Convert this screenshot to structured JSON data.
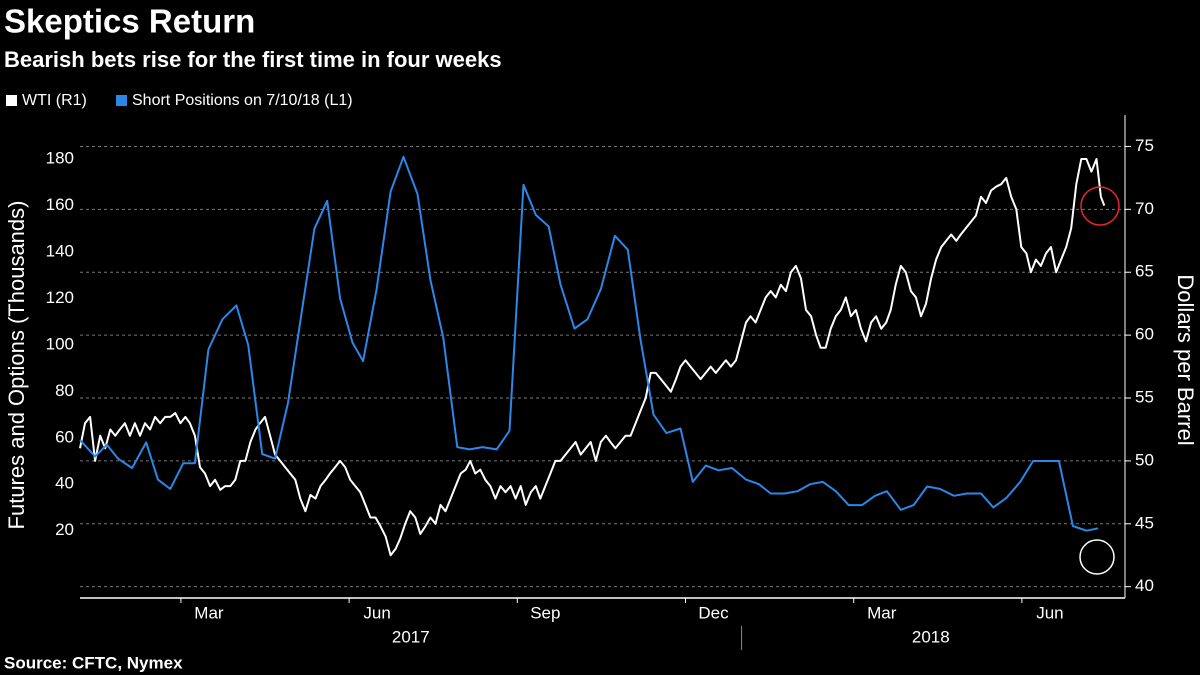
{
  "chart_data": {
    "type": "line",
    "title": "Skeptics Return",
    "subtitle": "Bearish bets rise for the first time in four weeks",
    "source": "Source: CFTC, Nymex",
    "ylabel": "Futures and Options (Thousands)",
    "y2label": "Dollars per Barrel",
    "xlim": [
      0.2,
      18.75
    ],
    "xticks": [
      {
        "value": 2,
        "label": "Mar"
      },
      {
        "value": 5,
        "label": "Jun"
      },
      {
        "value": 8,
        "label": "Sep"
      },
      {
        "value": 11,
        "label": "Dec"
      },
      {
        "value": 14,
        "label": "Mar"
      },
      {
        "value": 17,
        "label": "Jun"
      }
    ],
    "year_labels": [
      "2017",
      "2018"
    ],
    "year_divider": 12,
    "ylim": [
      -9,
      199
    ],
    "yticks": [
      20,
      40,
      60,
      80,
      100,
      120,
      140,
      160,
      180
    ],
    "y2lim": [
      39.1,
      77.5
    ],
    "y2ticks": [
      40,
      45,
      50,
      55,
      60,
      65,
      70,
      75
    ],
    "grid": "y2",
    "legend": "top-left",
    "series": [
      {
        "name": "WTI (R1)",
        "color": "#ffffff",
        "axis": "y2",
        "x": [
          0.2,
          0.29,
          0.38,
          0.47,
          0.56,
          0.65,
          0.74,
          0.83,
          0.91,
          1.0,
          1.09,
          1.18,
          1.27,
          1.36,
          1.45,
          1.54,
          1.63,
          1.72,
          1.81,
          1.9,
          1.99,
          2.08,
          2.16,
          2.25,
          2.34,
          2.43,
          2.52,
          2.61,
          2.7,
          2.79,
          2.88,
          2.97,
          3.06,
          3.15,
          3.24,
          3.33,
          3.41,
          3.5,
          3.59,
          3.68,
          3.77,
          3.86,
          3.95,
          4.04,
          4.13,
          4.22,
          4.31,
          4.4,
          4.49,
          4.58,
          4.66,
          4.75,
          4.84,
          4.93,
          5.02,
          5.11,
          5.2,
          5.29,
          5.38,
          5.47,
          5.56,
          5.65,
          5.74,
          5.83,
          5.91,
          6.0,
          6.09,
          6.18,
          6.27,
          6.36,
          6.45,
          6.54,
          6.63,
          6.72,
          6.81,
          6.9,
          6.99,
          7.08,
          7.16,
          7.25,
          7.34,
          7.43,
          7.52,
          7.61,
          7.7,
          7.79,
          7.88,
          7.97,
          8.06,
          8.15,
          8.24,
          8.33,
          8.41,
          8.5,
          8.59,
          8.68,
          8.77,
          8.86,
          8.95,
          9.04,
          9.13,
          9.22,
          9.31,
          9.4,
          9.49,
          9.58,
          9.66,
          9.75,
          9.84,
          9.93,
          10.02,
          10.11,
          10.2,
          10.29,
          10.38,
          10.47,
          10.56,
          10.65,
          10.74,
          10.83,
          10.91,
          11.0,
          11.09,
          11.18,
          11.27,
          11.36,
          11.45,
          11.54,
          11.63,
          11.72,
          11.81,
          11.9,
          11.99,
          12.08,
          12.16,
          12.25,
          12.34,
          12.43,
          12.52,
          12.61,
          12.7,
          12.79,
          12.88,
          12.97,
          13.06,
          13.15,
          13.24,
          13.33,
          13.41,
          13.5,
          13.59,
          13.68,
          13.77,
          13.86,
          13.95,
          14.04,
          14.13,
          14.22,
          14.31,
          14.4,
          14.49,
          14.58,
          14.66,
          14.75,
          14.84,
          14.93,
          15.02,
          15.11,
          15.2,
          15.29,
          15.38,
          15.47,
          15.56,
          15.65,
          15.74,
          15.83,
          15.91,
          16.0,
          16.09,
          16.18,
          16.27,
          16.36,
          16.45,
          16.54,
          16.63,
          16.72,
          16.81,
          16.9,
          16.99,
          17.08,
          17.16,
          17.25,
          17.34,
          17.43,
          17.52,
          17.61,
          17.7,
          17.79,
          17.88,
          17.97,
          18.06,
          18.15,
          18.24,
          18.33,
          18.41,
          18.47
        ],
        "values": [
          51,
          53,
          53.5,
          50,
          52,
          51,
          52.5,
          52,
          52.5,
          53,
          52,
          53,
          52,
          53,
          52.5,
          53.5,
          53,
          53.5,
          53.5,
          53.8,
          53,
          53.5,
          53,
          52,
          49.5,
          49,
          48,
          48.5,
          47.7,
          48,
          48,
          48.5,
          50,
          50,
          51.5,
          52.5,
          53,
          53.5,
          52,
          50.5,
          50,
          49.5,
          49,
          48.5,
          47,
          46,
          47.3,
          47,
          48,
          48.5,
          49,
          49.5,
          50,
          49.5,
          48.5,
          48,
          47.5,
          46.5,
          45.5,
          45.5,
          44.8,
          44,
          42.5,
          43,
          43.8,
          45,
          46,
          45.5,
          44.2,
          44.8,
          45.5,
          45,
          46.5,
          46,
          47,
          48,
          49,
          49.3,
          50,
          49,
          49.3,
          48.5,
          48,
          47,
          48,
          47.5,
          48,
          47,
          48,
          46.5,
          47.5,
          48,
          47,
          48,
          49,
          50,
          50,
          50.5,
          51,
          51.5,
          50.5,
          51,
          51.5,
          50,
          51.5,
          52,
          51.5,
          51,
          51.5,
          52,
          52,
          53,
          54,
          55,
          57,
          57,
          56.5,
          56,
          55.5,
          56.5,
          57.5,
          58,
          57.5,
          57,
          56.5,
          57,
          57.5,
          57,
          57.5,
          58,
          57.5,
          58,
          59.5,
          61,
          61.5,
          61,
          62,
          63,
          63.5,
          63,
          64,
          63.5,
          65,
          65.5,
          64.5,
          62,
          61.5,
          60,
          59,
          59,
          60.5,
          61.5,
          62,
          63,
          61.5,
          62,
          60.5,
          59.5,
          61,
          61.5,
          60.5,
          61,
          62,
          64,
          65.5,
          65,
          63.5,
          63,
          61.5,
          62.5,
          64.5,
          66,
          67,
          67.5,
          68,
          67.5,
          68,
          68.5,
          69,
          69.5,
          71,
          70.5,
          71.5,
          71.8,
          72,
          72.5,
          71,
          70,
          67,
          66.5,
          65,
          66,
          65.5,
          66.5,
          67,
          65,
          66,
          67,
          68.5,
          72,
          74,
          74,
          73,
          74,
          71,
          70.3
        ]
      },
      {
        "name": "Short Positions on 7/10/18 (L1)",
        "color": "#2b87e8",
        "axis": "y",
        "x": [
          0.2,
          0.47,
          0.68,
          0.88,
          1.13,
          1.38,
          1.59,
          1.81,
          2.04,
          2.25,
          2.49,
          2.74,
          2.99,
          3.2,
          3.45,
          3.68,
          3.91,
          4.16,
          4.38,
          4.61,
          4.84,
          5.06,
          5.25,
          5.49,
          5.74,
          5.97,
          6.22,
          6.45,
          6.68,
          6.93,
          7.15,
          7.38,
          7.63,
          7.86,
          8.11,
          8.33,
          8.56,
          8.77,
          9.02,
          9.25,
          9.49,
          9.74,
          9.97,
          10.2,
          10.43,
          10.66,
          10.91,
          11.13,
          11.36,
          11.59,
          11.83,
          12.08,
          12.31,
          12.52,
          12.77,
          13.0,
          13.22,
          13.45,
          13.68,
          13.91,
          14.15,
          14.38,
          14.59,
          14.84,
          15.07,
          15.31,
          15.54,
          15.79,
          16.02,
          16.27,
          16.49,
          16.72,
          16.97,
          17.2,
          17.43,
          17.66,
          17.91,
          18.15,
          18.36
        ],
        "values": [
          59,
          52,
          57,
          51,
          47,
          58,
          42,
          38,
          49,
          49,
          98,
          111,
          117,
          100,
          53,
          51,
          75,
          115,
          150,
          162,
          120,
          101,
          93,
          124,
          166,
          181,
          165,
          128,
          103,
          56,
          55,
          56,
          55,
          63,
          169,
          156,
          151,
          126,
          107,
          111,
          124,
          147,
          141,
          102,
          70,
          62,
          64,
          41,
          48,
          46,
          47,
          42,
          40,
          36,
          36,
          37,
          40,
          41,
          37,
          31,
          31,
          35,
          37,
          29,
          31,
          39,
          38,
          35,
          36,
          36,
          30,
          34,
          41,
          50,
          50,
          50,
          22,
          20,
          21
        ]
      }
    ]
  }
}
